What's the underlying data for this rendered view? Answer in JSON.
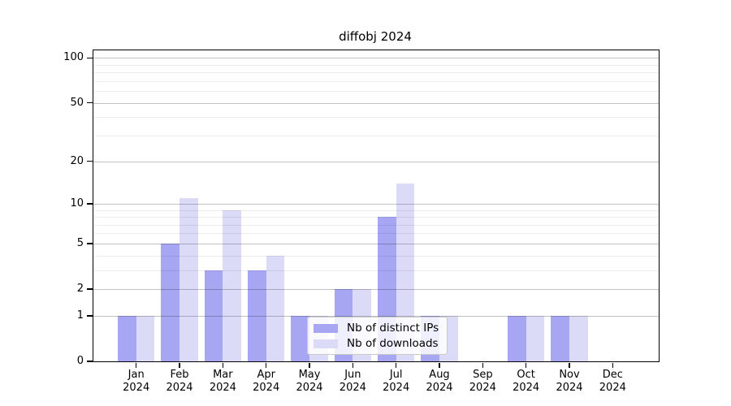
{
  "chart_data": {
    "type": "bar",
    "title": "diffobj 2024",
    "categories": [
      "Jan",
      "Feb",
      "Mar",
      "Apr",
      "May",
      "Jun",
      "Jul",
      "Aug",
      "Sep",
      "Oct",
      "Nov",
      "Dec"
    ],
    "category_year": "2024",
    "series": [
      {
        "name": "Nb of distinct IPs",
        "color": "#a6a6f3",
        "values": [
          1,
          5,
          3,
          3,
          1,
          2,
          8,
          1,
          0,
          1,
          1,
          0
        ]
      },
      {
        "name": "Nb of downloads",
        "color": "#dbdbf8",
        "values": [
          1,
          11,
          9,
          4,
          1,
          2,
          14,
          1,
          0,
          1,
          1,
          0
        ]
      }
    ],
    "xlabel": "",
    "ylabel": "",
    "y_scale": "log10(1+y)",
    "y_major_ticks": [
      0,
      1,
      2,
      5,
      10,
      20,
      50,
      100
    ],
    "y_minor_gridlines": [
      3,
      4,
      6,
      7,
      8,
      9,
      30,
      40,
      60,
      70,
      80,
      90
    ],
    "ylim": [
      0,
      112
    ],
    "grid": "on",
    "legend_position": "bottom-center"
  }
}
